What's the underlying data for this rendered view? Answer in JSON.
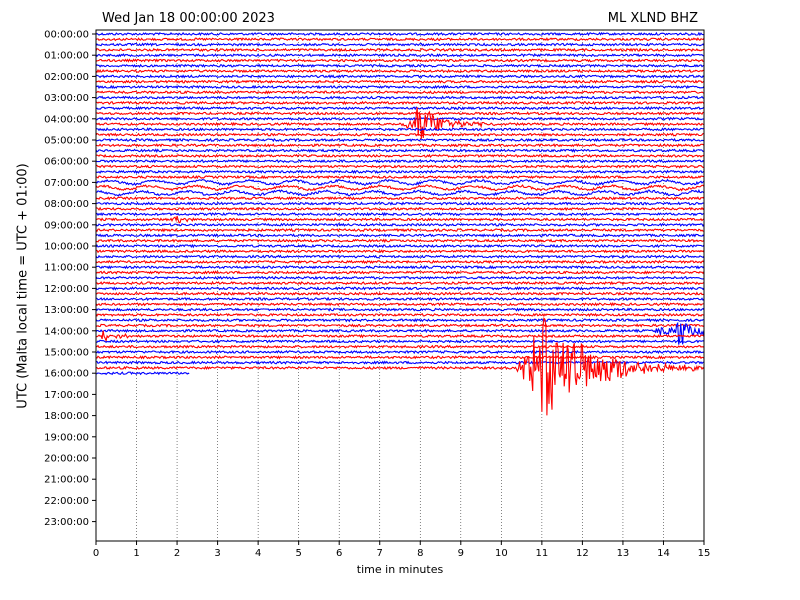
{
  "header": {
    "date_label": "Wed Jan 18 00:00:00 2023",
    "station_label": "ML XLND BHZ"
  },
  "chart_data": {
    "type": "line",
    "title": "Wed Jan 18 00:00:00 2023",
    "station": "ML XLND BHZ",
    "xlabel": "time in minutes",
    "ylabel": "UTC (Malta local time = UTC + 01:00)",
    "xlim": [
      0,
      15
    ],
    "x_ticks": [
      "0",
      "1",
      "2",
      "3",
      "4",
      "5",
      "6",
      "7",
      "8",
      "9",
      "10",
      "11",
      "12",
      "13",
      "14",
      "15"
    ],
    "y_ticks": [
      "00:00:00",
      "01:00:00",
      "02:00:00",
      "03:00:00",
      "04:00:00",
      "05:00:00",
      "06:00:00",
      "07:00:00",
      "08:00:00",
      "09:00:00",
      "10:00:00",
      "11:00:00",
      "12:00:00",
      "13:00:00",
      "14:00:00",
      "15:00:00",
      "16:00:00",
      "17:00:00",
      "18:00:00",
      "19:00:00",
      "20:00:00",
      "21:00:00",
      "22:00:00",
      "23:00:00"
    ],
    "grid": "vertical dotted at each minute",
    "trace_interval_minutes": 15,
    "traces_per_hour": 4,
    "trace_colors": [
      "#0000ff",
      "#ff0000"
    ],
    "recorded_until": "16:00:00 hour row, trace ends at x ≈ 2.3 min",
    "events": [
      {
        "name": "event near 04:15",
        "row_hour": 4.25,
        "color": "#ff0000",
        "x_start": 7.5,
        "x_end": 10.0,
        "peak_x": 7.95,
        "relative_amplitude": 0.9
      },
      {
        "name": "event near 15:45",
        "row_hour": 15.75,
        "color": "#ff0000",
        "x_start": 10.35,
        "x_end": 15.0,
        "peak_x": 10.85,
        "relative_amplitude": 2.8
      },
      {
        "name": "event near 14:00 (tail of 13:45 trace)",
        "row_hour": 14.0,
        "color": "#0000ff",
        "x_start": 13.75,
        "x_end": 15.0,
        "peak_x": 14.4,
        "relative_amplitude": 1.0
      },
      {
        "name": "small burst near 14:15",
        "row_hour": 14.25,
        "color": "#ff0000",
        "x_start": 0.0,
        "x_end": 0.8,
        "peak_x": 0.2,
        "relative_amplitude": 0.3
      },
      {
        "name": "small burst near 08:45",
        "row_hour": 8.75,
        "color": "#ff0000",
        "x_start": 1.8,
        "x_end": 2.4,
        "peak_x": 2.0,
        "relative_amplitude": 0.2
      }
    ],
    "microseism_rows_hours": [
      7.0,
      7.25,
      7.5
    ]
  }
}
